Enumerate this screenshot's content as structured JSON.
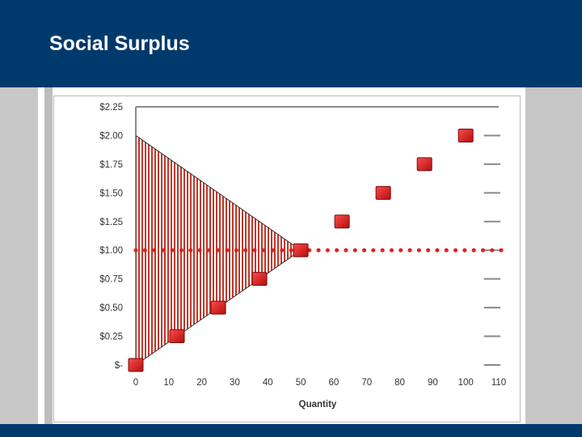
{
  "slide": {
    "title": "Social Surplus"
  },
  "colors": {
    "header": "#003a6c",
    "marker": "#d42020",
    "dotted_line": "#e02020",
    "surplus_stripe": "#c0392b"
  },
  "chart_data": {
    "type": "scatter",
    "title": "",
    "xlabel": "Quantity",
    "ylabel": "",
    "xlim": [
      0,
      110
    ],
    "ylim": [
      0,
      2.25
    ],
    "x_ticks": [
      0,
      10,
      20,
      30,
      40,
      50,
      60,
      70,
      80,
      90,
      100,
      110
    ],
    "y_ticks": [
      0,
      0.25,
      0.5,
      0.75,
      1.0,
      1.25,
      1.5,
      1.75,
      2.0,
      2.25
    ],
    "y_tick_labels": [
      "$-",
      "$0.25",
      "$0.50",
      "$0.75",
      "$1.00",
      "$1.25",
      "$1.50",
      "$1.75",
      "$2.00",
      "$2.25"
    ],
    "series": [
      {
        "values_x": [
          0,
          12.5,
          25,
          37.5,
          50,
          62.5,
          75,
          87.5,
          100
        ],
        "values_y": [
          0,
          0.25,
          0.5,
          0.75,
          1.0,
          1.25,
          1.5,
          1.75,
          2.0
        ]
      }
    ],
    "price_line": {
      "y": 1.0
    },
    "surplus_region": {
      "vertices": [
        [
          0,
          2.0
        ],
        [
          50,
          1.0
        ],
        [
          0,
          0
        ]
      ]
    },
    "grid": false
  }
}
